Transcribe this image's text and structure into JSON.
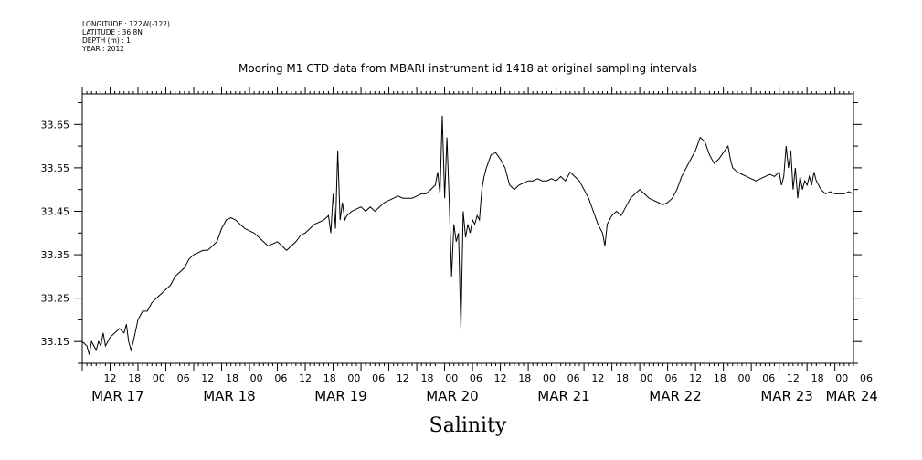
{
  "meta": {
    "longitude": "LONGITUDE : 122W(-122)",
    "latitude": "LATITUDE : 36.8N",
    "depth": "DEPTH (m) : 1",
    "year": "YEAR : 2012"
  },
  "chart_data": {
    "type": "line",
    "title": "Mooring M1 CTD data from MBARI instrument id 1418 at original sampling intervals",
    "xlabel": "Salinity",
    "ylabel": "",
    "ylim": [
      33.1,
      33.72
    ],
    "xlim_hours": [
      0,
      166
    ],
    "y_ticks": [
      "33.15",
      "33.25",
      "33.35",
      "33.45",
      "33.55",
      "33.65"
    ],
    "x_hour_labels": [
      "12",
      "18",
      "00",
      "06",
      "12",
      "18",
      "00",
      "06",
      "12",
      "18",
      "00",
      "06",
      "12",
      "18",
      "00",
      "06",
      "12",
      "18",
      "00",
      "06",
      "12",
      "18",
      "00",
      "06",
      "12",
      "18",
      "00",
      "06",
      "12",
      "18",
      "00",
      "06"
    ],
    "x_day_labels": [
      {
        "label": "MAR 17",
        "hour": 2
      },
      {
        "label": "MAR 18",
        "hour": 26
      },
      {
        "label": "MAR 19",
        "hour": 50
      },
      {
        "label": "MAR 20",
        "hour": 74
      },
      {
        "label": "MAR 21",
        "hour": 98
      },
      {
        "label": "MAR 22",
        "hour": 122
      },
      {
        "label": "MAR 23",
        "hour": 146
      },
      {
        "label": "MAR 24",
        "hour": 160
      }
    ],
    "grid": false,
    "series": [
      {
        "points": [
          [
            0,
            33.15
          ],
          [
            1,
            33.14
          ],
          [
            1.5,
            33.12
          ],
          [
            2,
            33.15
          ],
          [
            3,
            33.13
          ],
          [
            3.5,
            33.15
          ],
          [
            4,
            33.14
          ],
          [
            4.5,
            33.17
          ],
          [
            5,
            33.14
          ],
          [
            6,
            33.16
          ],
          [
            7,
            33.17
          ],
          [
            8,
            33.18
          ],
          [
            9,
            33.17
          ],
          [
            9.5,
            33.19
          ],
          [
            10,
            33.15
          ],
          [
            10.5,
            33.13
          ],
          [
            11,
            33.15
          ],
          [
            12,
            33.2
          ],
          [
            13,
            33.22
          ],
          [
            14,
            33.22
          ],
          [
            15,
            33.24
          ],
          [
            16,
            33.25
          ],
          [
            17,
            33.26
          ],
          [
            18,
            33.27
          ],
          [
            19,
            33.28
          ],
          [
            20,
            33.3
          ],
          [
            21,
            33.31
          ],
          [
            22,
            33.32
          ],
          [
            23,
            33.34
          ],
          [
            24,
            33.35
          ],
          [
            25,
            33.355
          ],
          [
            26,
            33.36
          ],
          [
            27,
            33.36
          ],
          [
            28,
            33.37
          ],
          [
            29,
            33.38
          ],
          [
            30,
            33.41
          ],
          [
            31,
            33.43
          ],
          [
            32,
            33.435
          ],
          [
            33,
            33.43
          ],
          [
            34,
            33.42
          ],
          [
            35,
            33.41
          ],
          [
            36,
            33.405
          ],
          [
            37,
            33.4
          ],
          [
            38,
            33.39
          ],
          [
            39,
            33.38
          ],
          [
            40,
            33.37
          ],
          [
            41,
            33.375
          ],
          [
            42,
            33.38
          ],
          [
            43,
            33.37
          ],
          [
            44,
            33.36
          ],
          [
            45,
            33.37
          ],
          [
            46,
            33.38
          ],
          [
            47,
            33.395
          ],
          [
            48,
            33.4
          ],
          [
            49,
            33.41
          ],
          [
            50,
            33.42
          ],
          [
            51,
            33.425
          ],
          [
            52,
            33.43
          ],
          [
            53,
            33.44
          ],
          [
            53.5,
            33.4
          ],
          [
            54,
            33.49
          ],
          [
            54.5,
            33.41
          ],
          [
            55,
            33.59
          ],
          [
            55.5,
            33.43
          ],
          [
            56,
            33.47
          ],
          [
            56.5,
            33.43
          ],
          [
            57,
            33.44
          ],
          [
            58,
            33.45
          ],
          [
            59,
            33.455
          ],
          [
            60,
            33.46
          ],
          [
            61,
            33.45
          ],
          [
            62,
            33.46
          ],
          [
            63,
            33.45
          ],
          [
            64,
            33.46
          ],
          [
            65,
            33.47
          ],
          [
            66,
            33.475
          ],
          [
            67,
            33.48
          ],
          [
            68,
            33.485
          ],
          [
            69,
            33.48
          ],
          [
            70,
            33.48
          ],
          [
            71,
            33.48
          ],
          [
            72,
            33.485
          ],
          [
            73,
            33.49
          ],
          [
            74,
            33.49
          ],
          [
            75,
            33.5
          ],
          [
            76,
            33.51
          ],
          [
            76.5,
            33.54
          ],
          [
            77,
            33.49
          ],
          [
            77.5,
            33.67
          ],
          [
            78,
            33.48
          ],
          [
            78.5,
            33.62
          ],
          [
            79,
            33.47
          ],
          [
            79.5,
            33.3
          ],
          [
            80,
            33.42
          ],
          [
            80.5,
            33.38
          ],
          [
            81,
            33.4
          ],
          [
            81.5,
            33.18
          ],
          [
            82,
            33.45
          ],
          [
            82.5,
            33.39
          ],
          [
            83,
            33.42
          ],
          [
            83.5,
            33.4
          ],
          [
            84,
            33.43
          ],
          [
            84.5,
            33.42
          ],
          [
            85,
            33.44
          ],
          [
            85.5,
            33.43
          ],
          [
            86,
            33.5
          ],
          [
            86.5,
            33.53
          ],
          [
            87,
            33.55
          ],
          [
            88,
            33.58
          ],
          [
            89,
            33.585
          ],
          [
            90,
            33.57
          ],
          [
            91,
            33.55
          ],
          [
            91.5,
            33.53
          ],
          [
            92,
            33.51
          ],
          [
            93,
            33.5
          ],
          [
            94,
            33.51
          ],
          [
            95,
            33.515
          ],
          [
            96,
            33.52
          ],
          [
            97,
            33.52
          ],
          [
            98,
            33.525
          ],
          [
            99,
            33.52
          ],
          [
            100,
            33.52
          ],
          [
            101,
            33.525
          ],
          [
            102,
            33.52
          ],
          [
            103,
            33.53
          ],
          [
            104,
            33.52
          ],
          [
            105,
            33.54
          ],
          [
            106,
            33.53
          ],
          [
            107,
            33.52
          ],
          [
            108,
            33.5
          ],
          [
            109,
            33.48
          ],
          [
            110,
            33.45
          ],
          [
            111,
            33.42
          ],
          [
            112,
            33.4
          ],
          [
            112.5,
            33.37
          ],
          [
            113,
            33.42
          ],
          [
            114,
            33.44
          ],
          [
            115,
            33.45
          ],
          [
            116,
            33.44
          ],
          [
            117,
            33.46
          ],
          [
            118,
            33.48
          ],
          [
            119,
            33.49
          ],
          [
            120,
            33.5
          ],
          [
            121,
            33.49
          ],
          [
            122,
            33.48
          ],
          [
            123,
            33.475
          ],
          [
            124,
            33.47
          ],
          [
            125,
            33.465
          ],
          [
            126,
            33.47
          ],
          [
            127,
            33.48
          ],
          [
            128,
            33.5
          ],
          [
            129,
            33.53
          ],
          [
            130,
            33.55
          ],
          [
            131,
            33.57
          ],
          [
            132,
            33.59
          ],
          [
            133,
            33.62
          ],
          [
            134,
            33.61
          ],
          [
            135,
            33.58
          ],
          [
            136,
            33.56
          ],
          [
            137,
            33.57
          ],
          [
            138,
            33.585
          ],
          [
            139,
            33.6
          ],
          [
            139.5,
            33.57
          ],
          [
            140,
            33.55
          ],
          [
            141,
            33.54
          ],
          [
            142,
            33.535
          ],
          [
            143,
            33.53
          ],
          [
            144,
            33.525
          ],
          [
            145,
            33.52
          ],
          [
            146,
            33.525
          ],
          [
            147,
            33.53
          ],
          [
            148,
            33.535
          ],
          [
            149,
            33.53
          ],
          [
            150,
            33.54
          ],
          [
            150.5,
            33.51
          ],
          [
            151,
            33.53
          ],
          [
            151.5,
            33.6
          ],
          [
            152,
            33.55
          ],
          [
            152.5,
            33.59
          ],
          [
            153,
            33.5
          ],
          [
            153.5,
            33.55
          ],
          [
            154,
            33.48
          ],
          [
            154.5,
            33.53
          ],
          [
            155,
            33.5
          ],
          [
            155.5,
            33.52
          ],
          [
            156,
            33.51
          ],
          [
            156.5,
            33.53
          ],
          [
            157,
            33.51
          ],
          [
            157.5,
            33.54
          ],
          [
            158,
            33.52
          ],
          [
            159,
            33.5
          ],
          [
            160,
            33.49
          ],
          [
            161,
            33.495
          ],
          [
            162,
            33.49
          ],
          [
            163,
            33.49
          ],
          [
            164,
            33.49
          ],
          [
            165,
            33.495
          ],
          [
            166,
            33.49
          ]
        ]
      }
    ]
  }
}
